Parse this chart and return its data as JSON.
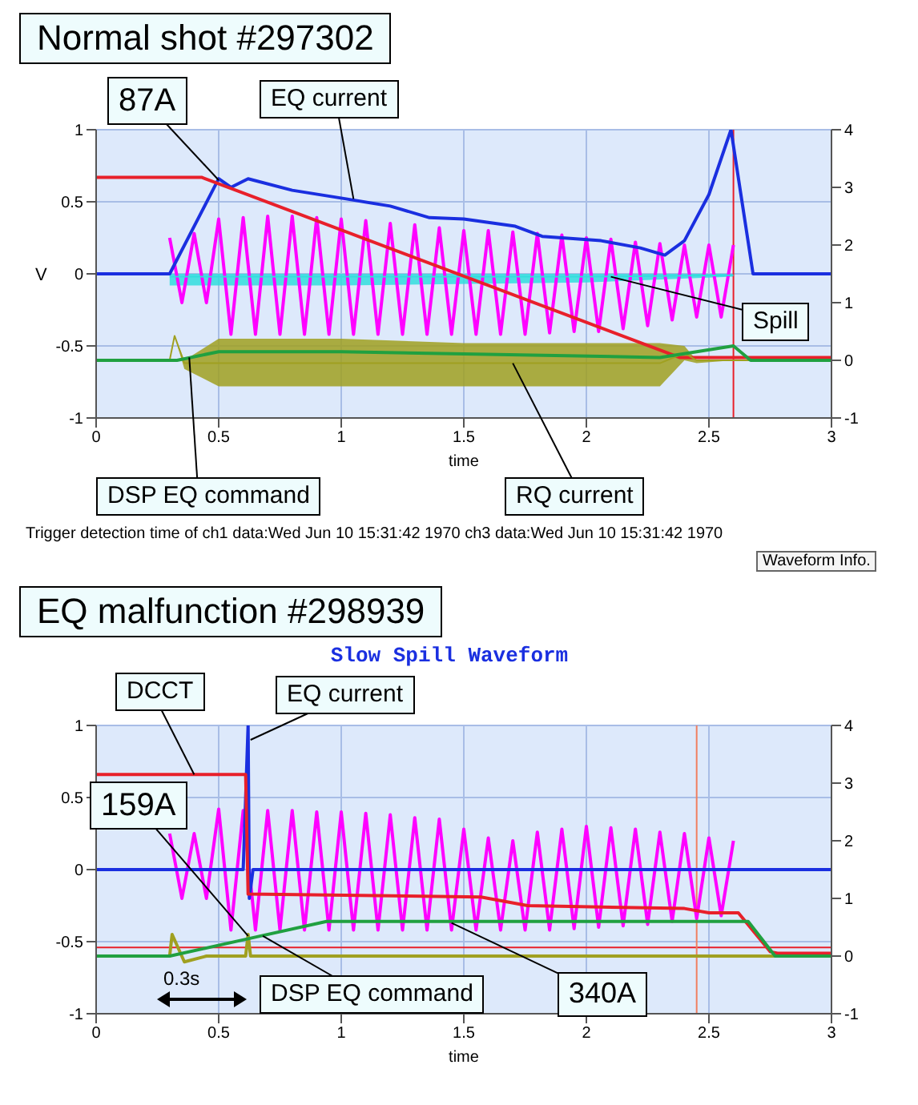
{
  "chart_data": [
    {
      "type": "line",
      "title": "Normal shot  #297302",
      "xlabel": "time",
      "ylabel": "V",
      "xlim": [
        0,
        3
      ],
      "xticks": [
        0,
        0.5,
        1,
        1.5,
        2,
        2.5,
        3
      ],
      "ylim": [
        -1,
        1
      ],
      "yticks": [
        -1,
        -0.5,
        0,
        0.5,
        1
      ],
      "y2lim": [
        -1,
        4
      ],
      "y2ticks": [
        -1,
        0,
        1,
        2,
        3,
        4
      ],
      "grid": true,
      "series": [
        {
          "color": "#ff00ff",
          "x": [
            0.3,
            0.35,
            0.4,
            0.45,
            0.5,
            0.55,
            0.6,
            0.65,
            0.7,
            0.75,
            0.8,
            0.85,
            0.9,
            0.95,
            1.0,
            1.05,
            1.1,
            1.15,
            1.2,
            1.25,
            1.3,
            1.35,
            1.4,
            1.45,
            1.5,
            1.55,
            1.6,
            1.65,
            1.7,
            1.75,
            1.8,
            1.85,
            1.9,
            1.95,
            2.0,
            2.05,
            2.1,
            2.15,
            2.2,
            2.25,
            2.3,
            2.35,
            2.4,
            2.45,
            2.5,
            2.55,
            2.6
          ],
          "values": [
            0.25,
            -0.2,
            0.28,
            -0.2,
            0.38,
            -0.42,
            0.39,
            -0.42,
            0.4,
            -0.42,
            0.4,
            -0.42,
            0.39,
            -0.42,
            0.38,
            -0.42,
            0.37,
            -0.42,
            0.35,
            -0.42,
            0.34,
            -0.42,
            0.32,
            -0.42,
            0.3,
            -0.42,
            0.3,
            -0.42,
            0.29,
            -0.42,
            0.28,
            -0.41,
            0.27,
            -0.4,
            0.25,
            -0.4,
            0.24,
            -0.38,
            0.22,
            -0.36,
            0.21,
            -0.32,
            0.2,
            -0.3,
            0.2,
            -0.3,
            0.2
          ]
        },
        {
          "color": "#33dddd",
          "x": [
            0.3,
            1.0,
            2.0,
            2.6
          ],
          "values": [
            -0.02,
            -0.02,
            -0.02,
            -0.01
          ],
          "lower": [
            -0.08,
            -0.08,
            -0.06,
            -0.02
          ],
          "upper": [
            0,
            0,
            0,
            0
          ]
        },
        {
          "color": "#1a2fe0",
          "x": [
            0,
            0.3,
            0.5,
            0.55,
            0.62,
            0.8,
            1.02,
            1.2,
            1.36,
            1.5,
            1.71,
            1.82,
            2.06,
            2.22,
            2.32,
            2.4,
            2.5,
            2.59,
            2.68,
            3
          ],
          "values": [
            0,
            0,
            0.66,
            0.6,
            0.66,
            0.58,
            0.52,
            0.47,
            0.39,
            0.38,
            0.33,
            0.26,
            0.23,
            0.18,
            0.13,
            0.23,
            0.55,
            1.0,
            0,
            0
          ]
        },
        {
          "color": "#e8202a",
          "x": [
            0,
            0.43,
            2.38,
            3
          ],
          "values": [
            0.67,
            0.67,
            -0.58,
            -0.58
          ]
        },
        {
          "color": "#a0a020",
          "x": [
            0,
            0.3,
            0.32,
            0.36,
            0.5,
            1.0,
            1.5,
            2.0,
            2.3,
            2.4,
            2.45,
            2.6,
            3
          ],
          "values": [
            -0.6,
            -0.6,
            -0.43,
            -0.62,
            -0.62,
            -0.62,
            -0.62,
            -0.62,
            -0.62,
            -0.55,
            -0.6,
            -0.6,
            -0.6
          ],
          "lower": [
            -0.6,
            -0.6,
            -0.43,
            -0.66,
            -0.78,
            -0.78,
            -0.78,
            -0.78,
            -0.78,
            -0.6,
            -0.62,
            -0.6,
            -0.6
          ],
          "upper": [
            -0.6,
            -0.6,
            -0.43,
            -0.6,
            -0.45,
            -0.45,
            -0.48,
            -0.48,
            -0.48,
            -0.5,
            -0.6,
            -0.6,
            -0.6
          ]
        },
        {
          "color": "#20a040",
          "x": [
            0,
            0.33,
            0.5,
            1.0,
            2.3,
            2.6,
            2.67,
            3
          ],
          "values": [
            -0.6,
            -0.6,
            -0.54,
            -0.54,
            -0.58,
            -0.5,
            -0.6,
            -0.6
          ]
        }
      ],
      "ref_lines": [
        {
          "axis": "x",
          "value": 2.6,
          "color": "#e8202a"
        }
      ],
      "annotations": [
        {
          "text": "87A",
          "x": 0.5,
          "y": 0.65
        },
        {
          "text": "EQ current",
          "x": 1.05,
          "y": 0.52
        },
        {
          "text": "Spill",
          "x": 2.1,
          "y": -0.02
        },
        {
          "text": "RQ current",
          "x": 1.7,
          "y": -0.62
        },
        {
          "text": "DSP EQ command",
          "x": 0.38,
          "y": -0.58
        },
        "Trigger detection time of ch1 data:Wed Jun 10 15:31:42 1970 ch3 data:Wed Jun 10 15:31:42 1970",
        "Waveform Info."
      ]
    },
    {
      "type": "line",
      "title": "EQ malfunction #298939",
      "subtitle": "Slow Spill Waveform",
      "xlabel": "time",
      "xlim": [
        0,
        3
      ],
      "xticks": [
        0,
        0.5,
        1,
        1.5,
        2,
        2.5,
        3
      ],
      "ylim": [
        -1,
        1
      ],
      "yticks": [
        -1,
        -0.5,
        0,
        0.5,
        1
      ],
      "y2lim": [
        -1,
        4
      ],
      "y2ticks": [
        -1,
        0,
        1,
        2,
        3,
        4
      ],
      "grid": true,
      "series": [
        {
          "color": "#ff00ff",
          "x": [
            0.3,
            0.35,
            0.4,
            0.45,
            0.5,
            0.55,
            0.6,
            0.65,
            0.7,
            0.75,
            0.8,
            0.85,
            0.9,
            0.95,
            1.0,
            1.05,
            1.1,
            1.15,
            1.2,
            1.25,
            1.3,
            1.35,
            1.4,
            1.45,
            1.5,
            1.55,
            1.6,
            1.65,
            1.7,
            1.75,
            1.8,
            1.85,
            1.9,
            1.95,
            2.0,
            2.05,
            2.1,
            2.15,
            2.2,
            2.25,
            2.3,
            2.35,
            2.4,
            2.45,
            2.5,
            2.55,
            2.6
          ],
          "values": [
            0.25,
            -0.2,
            0.25,
            -0.2,
            0.42,
            -0.42,
            0.41,
            -0.42,
            0.41,
            -0.42,
            0.41,
            -0.42,
            0.4,
            -0.42,
            0.4,
            -0.42,
            0.39,
            -0.42,
            0.38,
            -0.42,
            0.36,
            -0.42,
            0.35,
            -0.42,
            0.28,
            -0.42,
            0.22,
            -0.42,
            0.2,
            -0.42,
            0.26,
            -0.42,
            0.28,
            -0.41,
            0.3,
            -0.4,
            0.29,
            -0.39,
            0.28,
            -0.38,
            0.26,
            -0.36,
            0.25,
            -0.34,
            0.22,
            -0.32,
            0.2
          ]
        },
        {
          "color": "#1a2fe0",
          "x": [
            0,
            0.6,
            0.61,
            0.62,
            0.625,
            0.64,
            3
          ],
          "values": [
            0,
            0,
            0.5,
            1.0,
            -0.2,
            0,
            0
          ]
        },
        {
          "color": "#e8202a",
          "x": [
            0,
            0.61,
            0.62,
            1.57,
            1.76,
            2.4,
            2.5,
            2.62,
            2.75,
            2.78,
            3
          ],
          "values": [
            0.66,
            0.66,
            -0.17,
            -0.19,
            -0.25,
            -0.27,
            -0.3,
            -0.3,
            -0.57,
            -0.58,
            -0.58
          ]
        },
        {
          "color": "#a0a020",
          "x": [
            0,
            0.3,
            0.31,
            0.36,
            0.45,
            0.61,
            0.62,
            0.63,
            3
          ],
          "values": [
            -0.6,
            -0.6,
            -0.45,
            -0.64,
            -0.6,
            -0.6,
            -0.45,
            -0.6,
            -0.6
          ]
        },
        {
          "color": "#20a040",
          "x": [
            0,
            0.3,
            0.62,
            0.94,
            2.66,
            2.77,
            3
          ],
          "values": [
            -0.6,
            -0.6,
            -0.48,
            -0.36,
            -0.36,
            -0.6,
            -0.6
          ]
        }
      ],
      "ref_lines": [
        {
          "axis": "y",
          "value": -0.54,
          "color": "#e8202a"
        },
        {
          "axis": "x",
          "value": 2.45,
          "color": "#f08060"
        }
      ],
      "annotations": [
        {
          "text": "DCCT",
          "x": 0.4,
          "y": 0.66
        },
        {
          "text": "EQ current",
          "x": 0.63,
          "y": 0.9
        },
        {
          "text": "159A",
          "x": 0.62,
          "y": -0.46
        },
        {
          "text": "DSP EQ command",
          "x": 0.68,
          "y": -0.46
        },
        {
          "text": "340A",
          "x": 1.45,
          "y": -0.37
        },
        "0.3s"
      ]
    }
  ]
}
